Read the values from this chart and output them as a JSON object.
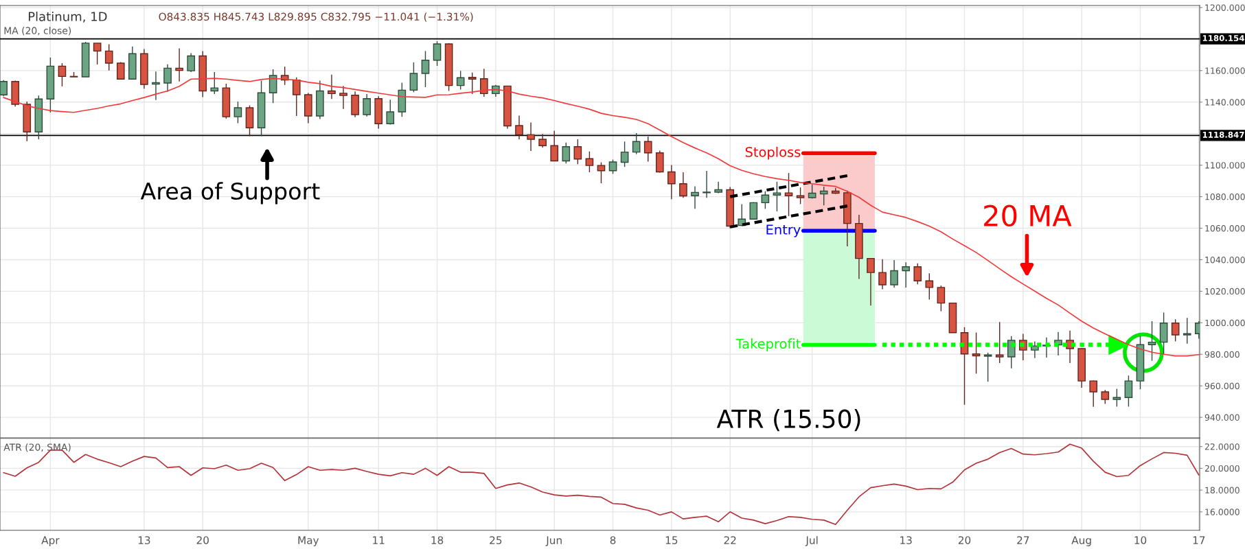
{
  "chart_data": [
    {
      "type": "candlestick",
      "title": "Platinum, 1D",
      "subtitle": "MA (20, close)",
      "categories": [
        null,
        null,
        null,
        null,
        null,
        null,
        null,
        null,
        null,
        null,
        null,
        null,
        null,
        null,
        null,
        null,
        null,
        null,
        null,
        null,
        null,
        null,
        null,
        null,
        null,
        null,
        null,
        null,
        null,
        null,
        null,
        null,
        null,
        null,
        null,
        null,
        null,
        null,
        null,
        null,
        null,
        null,
        null,
        null,
        null,
        null,
        null,
        null,
        null,
        null,
        null,
        null,
        null,
        null,
        null,
        null,
        null,
        null,
        null,
        null,
        null,
        null,
        null,
        null,
        null,
        null,
        null,
        null,
        null,
        null,
        null,
        null,
        null,
        null,
        null,
        null,
        null,
        null,
        null,
        null,
        null,
        null,
        null,
        null,
        null,
        null,
        null,
        null,
        null,
        null,
        null,
        null,
        null,
        null,
        null,
        null,
        null,
        null,
        null,
        null,
        null,
        null,
        null
      ],
      "ohlc": [
        [
          1144.6,
          1154.0,
          1143.7,
          1153.1
        ],
        [
          1153.1,
          1153.6,
          1137.2,
          1138.6
        ],
        [
          1138.6,
          1140.3,
          1115.2,
          1121.1
        ],
        [
          1121.1,
          1144.2,
          1116.4,
          1142.0
        ],
        [
          1142.0,
          1168.3,
          1133.4,
          1162.8
        ],
        [
          1162.8,
          1164.7,
          1150.0,
          1156.3
        ],
        [
          1156.3,
          1159.1,
          1156.0,
          1156.0
        ],
        [
          1156.0,
          1178.2,
          1156.0,
          1177.4
        ],
        [
          1177.4,
          1177.4,
          1163.9,
          1172.4
        ],
        [
          1172.4,
          1176.7,
          1160.1,
          1164.7
        ],
        [
          1164.7,
          1165.4,
          1154.3,
          1154.6
        ],
        [
          1154.6,
          1175.3,
          1154.3,
          1170.7
        ],
        [
          1170.7,
          1173.6,
          1148.5,
          1151.2
        ],
        [
          1151.4,
          1159.4,
          1141.3,
          1152.3
        ],
        [
          1152.1,
          1164.0,
          1146.6,
          1161.5
        ],
        [
          1161.5,
          1174.1,
          1153.1,
          1160.1
        ],
        [
          1159.9,
          1171.0,
          1159.1,
          1169.3
        ],
        [
          1169.3,
          1172.4,
          1143.2,
          1147.1
        ],
        [
          1147.1,
          1159.1,
          1145.1,
          1149.0
        ],
        [
          1149.0,
          1151.7,
          1129.5,
          1130.7
        ],
        [
          1130.7,
          1140.3,
          1126.6,
          1136.4
        ],
        [
          1136.4,
          1137.9,
          1118.4,
          1123.7
        ],
        [
          1123.7,
          1153.6,
          1118.4,
          1145.9
        ],
        [
          1145.9,
          1160.8,
          1139.4,
          1156.9
        ],
        [
          1156.9,
          1162.5,
          1150.9,
          1154.0
        ],
        [
          1154.0,
          1155.7,
          1131.2,
          1144.7
        ],
        [
          1144.7,
          1145.8,
          1126.6,
          1131.2
        ],
        [
          1131.2,
          1153.6,
          1129.2,
          1147.1
        ],
        [
          1147.1,
          1157.4,
          1142.0,
          1145.4
        ],
        [
          1145.6,
          1150.2,
          1135.7,
          1144.2
        ],
        [
          1144.4,
          1146.8,
          1130.4,
          1132.1
        ],
        [
          1132.1,
          1145.1,
          1130.9,
          1142.2
        ],
        [
          1142.2,
          1143.7,
          1123.2,
          1126.3
        ],
        [
          1126.3,
          1141.5,
          1125.8,
          1133.8
        ],
        [
          1133.8,
          1152.3,
          1130.7,
          1147.6
        ],
        [
          1147.6,
          1165.2,
          1146.3,
          1158.2
        ],
        [
          1158.2,
          1172.4,
          1149.5,
          1166.6
        ],
        [
          1166.6,
          1178.6,
          1163.0,
          1176.9
        ],
        [
          1176.9,
          1177.4,
          1147.1,
          1150.5
        ],
        [
          1150.5,
          1159.8,
          1148.0,
          1155.5
        ],
        [
          1155.7,
          1158.7,
          1145.1,
          1154.6
        ],
        [
          1154.8,
          1161.1,
          1143.4,
          1145.4
        ],
        [
          1145.4,
          1150.9,
          1143.4,
          1150.2
        ],
        [
          1150.2,
          1150.2,
          1123.2,
          1124.9
        ],
        [
          1125.1,
          1131.4,
          1116.4,
          1119.3
        ],
        [
          1119.3,
          1127.1,
          1109.0,
          1116.4
        ],
        [
          1116.4,
          1119.8,
          1111.2,
          1112.4
        ],
        [
          1112.4,
          1121.8,
          1102.7,
          1102.7
        ],
        [
          1102.7,
          1114.3,
          1101.0,
          1111.7
        ],
        [
          1111.7,
          1116.4,
          1100.6,
          1103.9
        ],
        [
          1104.1,
          1108.7,
          1095.5,
          1099.8
        ],
        [
          1099.8,
          1101.8,
          1088.5,
          1096.5
        ],
        [
          1096.5,
          1103.5,
          1094.5,
          1102.0
        ],
        [
          1101.8,
          1115.0,
          1098.9,
          1108.3
        ],
        [
          1108.3,
          1120.3,
          1107.0,
          1115.0
        ],
        [
          1115.0,
          1118.1,
          1102.2,
          1107.8
        ],
        [
          1107.8,
          1109.2,
          1095.3,
          1095.7
        ],
        [
          1095.7,
          1100.1,
          1078.4,
          1088.2
        ],
        [
          1088.2,
          1095.5,
          1079.3,
          1080.5
        ],
        [
          1080.6,
          1086.6,
          1072.3,
          1082.7
        ],
        [
          1082.5,
          1096.4,
          1079.3,
          1082.9
        ],
        [
          1082.9,
          1089.5,
          1082.2,
          1084.4
        ],
        [
          1084.4,
          1086.1,
          1060.0,
          1061.3
        ],
        [
          1061.7,
          1075.3,
          1061.3,
          1065.8
        ],
        [
          1065.8,
          1076.5,
          1065.6,
          1076.2
        ],
        [
          1076.2,
          1083.5,
          1072.3,
          1081.0
        ],
        [
          1081.0,
          1089.5,
          1070.7,
          1082.4
        ],
        [
          1082.4,
          1095.0,
          1067.7,
          1080.6
        ],
        [
          1080.6,
          1085.9,
          1075.3,
          1079.4
        ],
        [
          1079.4,
          1087.8,
          1078.8,
          1082.2
        ],
        [
          1081.8,
          1086.4,
          1074.5,
          1083.5
        ],
        [
          1083.5,
          1085.6,
          1081.8,
          1082.2
        ],
        [
          1082.5,
          1083.9,
          1048.5,
          1063.0
        ],
        [
          1063.0,
          1068.5,
          1027.8,
          1040.8
        ],
        [
          1040.8,
          1040.8,
          1010.9,
          1031.9
        ],
        [
          1031.9,
          1040.3,
          1021.3,
          1024.1
        ],
        [
          1024.1,
          1039.8,
          1022.4,
          1033.0
        ],
        [
          1033.0,
          1038.3,
          1022.4,
          1035.5
        ],
        [
          1035.5,
          1037.7,
          1024.4,
          1026.6
        ],
        [
          1026.6,
          1031.4,
          1014.7,
          1022.4
        ],
        [
          1022.4,
          1023.6,
          1007.3,
          1012.5
        ],
        [
          1012.5,
          1012.5,
          993.7,
          993.7
        ],
        [
          993.7,
          997.2,
          948.0,
          980.2
        ],
        [
          980.2,
          993.8,
          967.7,
          979.0
        ],
        [
          978.8,
          981.0,
          962.6,
          979.6
        ],
        [
          979.6,
          1000.5,
          974.5,
          978.4
        ],
        [
          978.4,
          991.6,
          971.1,
          988.9
        ],
        [
          988.9,
          993.0,
          976.2,
          982.7
        ],
        [
          982.7,
          988.2,
          977.6,
          985.3
        ],
        [
          985.3,
          990.7,
          977.9,
          985.8
        ],
        [
          986.0,
          994.2,
          979.3,
          988.9
        ],
        [
          988.9,
          995.0,
          974.5,
          983.6
        ],
        [
          983.6,
          983.9,
          958.8,
          963.1
        ],
        [
          963.1,
          963.4,
          946.7,
          956.2
        ],
        [
          956.2,
          957.4,
          948.5,
          951.4
        ],
        [
          951.4,
          958.1,
          946.8,
          952.6
        ],
        [
          952.6,
          966.5,
          946.8,
          963.1
        ],
        [
          963.1,
          991.6,
          957.8,
          986.1
        ],
        [
          986.1,
          1001.0,
          975.9,
          987.7
        ],
        [
          987.7,
          1006.5,
          979.6,
          999.8
        ],
        [
          999.8,
          1002.2,
          988.2,
          992.3
        ],
        [
          992.3,
          1003.1,
          986.8,
          993.1
        ],
        [
          993.1,
          1001.0,
          989.9,
          999.8
        ]
      ],
      "colors": [
        "#6ba583",
        "#d75442",
        "#d75442",
        "#6ba583",
        "#6ba583",
        "#d75442",
        "#d75442",
        "#6ba583",
        "#d75442",
        "#d75442",
        "#d75442",
        "#6ba583",
        "#d75442",
        "#6ba583",
        "#6ba583",
        "#d75442",
        "#6ba583",
        "#d75442",
        "#6ba583",
        "#d75442",
        "#6ba583",
        "#d75442",
        "#6ba583",
        "#6ba583",
        "#d75442",
        "#d75442",
        "#d75442",
        "#6ba583",
        "#d75442",
        "#d75442",
        "#d75442",
        "#6ba583",
        "#d75442",
        "#6ba583",
        "#6ba583",
        "#6ba583",
        "#6ba583",
        "#6ba583",
        "#d75442",
        "#6ba583",
        "#d75442",
        "#d75442",
        "#6ba583",
        "#d75442",
        "#d75442",
        "#d75442",
        "#d75442",
        "#d75442",
        "#6ba583",
        "#d75442",
        "#d75442",
        "#d75442",
        "#6ba583",
        "#6ba583",
        "#6ba583",
        "#d75442",
        "#d75442",
        "#d75442",
        "#d75442",
        "#6ba583",
        "#6ba583",
        "#6ba583",
        "#d75442",
        "#6ba583",
        "#6ba583",
        "#6ba583",
        "#6ba583",
        "#d75442",
        "#d75442",
        "#6ba583",
        "#6ba583",
        "#d75442",
        "#d75442",
        "#d75442",
        "#d75442",
        "#d75442",
        "#6ba583",
        "#6ba583",
        "#d75442",
        "#d75442",
        "#d75442",
        "#d75442",
        "#d75442",
        "#d75442",
        "#6ba583",
        "#d75442",
        "#6ba583",
        "#d75442",
        "#6ba583",
        "#6ba583",
        "#6ba583",
        "#d75442",
        "#d75442",
        "#d75442",
        "#d75442",
        "#6ba583",
        "#6ba583",
        "#6ba583",
        "#6ba583",
        "#6ba583",
        "#d75442",
        "#6ba583",
        "#6ba583"
      ],
      "series": [
        {
          "type": "line",
          "color": "#f23a3a",
          "values": [
            1142.9,
            1140.3,
            1137.7,
            1136.0,
            1134.6,
            1134.0,
            1133.5,
            1134.8,
            1136.0,
            1137.6,
            1138.9,
            1141.0,
            1142.9,
            1145.1,
            1147.1,
            1150.0,
            1154.6,
            1154.8,
            1155.1,
            1154.6,
            1153.8,
            1153.1,
            1154.3,
            1155.1,
            1154.5,
            1154.0,
            1152.6,
            1151.7,
            1150.0,
            1149.2,
            1148.0,
            1146.8,
            1145.7,
            1144.6,
            1143.5,
            1143.2,
            1143.0,
            1144.6,
            1144.7,
            1145.6,
            1146.4,
            1147.5,
            1148.0,
            1147.1,
            1145.1,
            1143.7,
            1142.7,
            1141.0,
            1139.1,
            1137.4,
            1135.5,
            1132.9,
            1131.4,
            1130.4,
            1129.0,
            1126.3,
            1122.3,
            1118.1,
            1114.3,
            1110.9,
            1107.8,
            1104.1,
            1099.6,
            1096.7,
            1094.5,
            1092.8,
            1091.4,
            1090.4,
            1089.0,
            1088.2,
            1087.3,
            1086.5,
            1083.4,
            1079.6,
            1074.5,
            1070.2,
            1068.5,
            1066.8,
            1064.2,
            1061.3,
            1057.7,
            1053.1,
            1048.9,
            1044.6,
            1039.5,
            1034.3,
            1029.2,
            1024.6,
            1020.1,
            1015.5,
            1011.3,
            1006.1,
            1001.0,
            996.7,
            993.0,
            989.5,
            986.1,
            983.4,
            981.3,
            980.0,
            979.0,
            979.0,
            979.8
          ]
        },
        {
          "type": "line",
          "color": "#000000",
          "line_style": "dashed",
          "values": [
            null,
            null,
            null,
            null,
            null,
            null,
            null,
            null,
            null,
            null,
            null,
            null,
            null,
            null,
            null,
            null,
            null,
            null,
            null,
            null,
            null,
            null,
            null,
            null,
            null,
            null,
            null,
            null,
            null,
            null,
            null,
            null,
            null,
            null,
            null,
            null,
            null,
            null,
            null,
            null,
            null,
            null,
            null,
            null,
            null,
            null,
            null,
            null,
            null,
            null,
            null,
            null,
            null,
            null,
            null,
            null,
            null,
            null,
            null,
            null,
            null,
            null,
            1080.0,
            null,
            null,
            null,
            null,
            null,
            null,
            null,
            null,
            null,
            1093.3,
            null,
            null,
            null,
            null,
            null,
            null,
            null,
            null,
            null,
            null,
            null,
            null,
            null,
            null,
            null,
            null,
            null,
            null,
            null,
            null,
            null,
            null,
            null,
            null,
            null,
            null,
            null,
            null,
            null,
            null
          ]
        },
        {
          "type": "line",
          "color": "#000000",
          "line_style": "dashed",
          "values": [
            null,
            null,
            null,
            null,
            null,
            null,
            null,
            null,
            null,
            null,
            null,
            null,
            null,
            null,
            null,
            null,
            null,
            null,
            null,
            null,
            null,
            null,
            null,
            null,
            null,
            null,
            null,
            null,
            null,
            null,
            null,
            null,
            null,
            null,
            null,
            null,
            null,
            null,
            null,
            null,
            null,
            null,
            null,
            null,
            null,
            null,
            null,
            null,
            null,
            null,
            null,
            null,
            null,
            null,
            null,
            null,
            null,
            null,
            null,
            null,
            null,
            null,
            1060.8,
            null,
            null,
            null,
            null,
            null,
            null,
            null,
            null,
            null,
            1074.1,
            null,
            null,
            null,
            null,
            null,
            null,
            null,
            null,
            null,
            null,
            null,
            null,
            null,
            null,
            null,
            null,
            null,
            null,
            null,
            null,
            null,
            null,
            null,
            null,
            null,
            null,
            null,
            null,
            null,
            null
          ]
        },
        {
          "type": "line",
          "color": "#00ff00",
          "line_style": "dotted",
          "values": [
            null,
            null,
            null,
            null,
            null,
            null,
            null,
            null,
            null,
            null,
            null,
            null,
            null,
            null,
            null,
            null,
            null,
            null,
            null,
            null,
            null,
            null,
            null,
            null,
            null,
            null,
            null,
            null,
            null,
            null,
            null,
            null,
            null,
            null,
            null,
            null,
            null,
            null,
            null,
            null,
            null,
            null,
            null,
            null,
            null,
            null,
            null,
            null,
            null,
            null,
            null,
            null,
            null,
            null,
            null,
            null,
            null,
            null,
            null,
            null,
            null,
            null,
            null,
            null,
            null,
            null,
            null,
            null,
            null,
            null,
            null,
            null,
            null,
            null,
            null,
            986.0,
            null,
            null,
            null,
            null,
            null,
            null,
            null,
            null,
            null,
            null,
            null,
            null,
            null,
            null,
            null,
            null,
            null,
            null,
            null,
            986.0,
            null,
            null,
            null,
            null,
            null,
            null,
            null
          ]
        }
      ],
      "ylim": [
        927,
        1201.3
      ],
      "yticks": [
        {
          "value": 940,
          "label": "940.000"
        },
        {
          "value": 960,
          "label": "960.000"
        },
        {
          "value": 980,
          "label": "980.000"
        },
        {
          "value": 1000,
          "label": "1000.000"
        },
        {
          "value": 1020,
          "label": "1020.000"
        },
        {
          "value": 1040,
          "label": "1040.000"
        },
        {
          "value": 1060,
          "label": "1060.000"
        },
        {
          "value": 1080,
          "label": "1080.000"
        },
        {
          "value": 1100,
          "label": "1100.000"
        },
        {
          "value": 1120,
          "label": null
        },
        {
          "value": 1140,
          "label": "1140.000"
        },
        {
          "value": 1160,
          "label": "1160.000"
        },
        {
          "value": 1180,
          "label": null
        },
        {
          "value": 1200,
          "label": "1200.000"
        }
      ],
      "ref_lines": [
        {
          "axis": "y",
          "value": 1180.154,
          "label": "1180.154",
          "color": "#000000"
        },
        {
          "axis": "y",
          "value": 1118.847,
          "label": "1118.847",
          "color": "#000000"
        },
        {
          "axis": "y",
          "value": 1107.6,
          "label": "Stoploss",
          "color": "#ff0000"
        },
        {
          "axis": "y",
          "value": 1058.4,
          "label": "Entry",
          "color": "#0000ff"
        },
        {
          "axis": "y",
          "value": 986.0,
          "label": "Takeprofit",
          "color": "#00ff00"
        }
      ],
      "bands": [
        {
          "axis": "y",
          "from": 1058.4,
          "to": 1107.6,
          "color": "#fbcaca"
        },
        {
          "axis": "y",
          "from": 986.0,
          "to": 1058.4,
          "color": "#cbfbd6"
        }
      ],
      "annotations": [
        "O843.835 H845.743 L829.895 C832.795 −11.041 (−1.31%)",
        "Area of Support",
        "20 MA",
        "ATR (15.50)"
      ],
      "grid": true,
      "tick_labels": "y"
    },
    {
      "type": "line",
      "title": "ATR (20, SMA)",
      "categories": [
        null,
        null,
        null,
        null,
        "Apr",
        null,
        null,
        null,
        null,
        null,
        null,
        null,
        "13",
        null,
        null,
        null,
        null,
        "20",
        null,
        null,
        null,
        null,
        null,
        null,
        null,
        null,
        "May",
        null,
        null,
        null,
        null,
        null,
        "11",
        null,
        null,
        null,
        null,
        "18",
        null,
        null,
        null,
        null,
        "25",
        null,
        null,
        null,
        null,
        "Jun",
        null,
        null,
        null,
        null,
        "8",
        null,
        null,
        null,
        null,
        "15",
        null,
        null,
        null,
        null,
        "22",
        null,
        null,
        null,
        null,
        null,
        null,
        "Jul",
        null,
        null,
        null,
        null,
        null,
        null,
        null,
        "13",
        null,
        null,
        null,
        null,
        "20",
        null,
        null,
        null,
        null,
        "27",
        null,
        null,
        null,
        null,
        "Aug",
        null,
        null,
        null,
        null,
        "10",
        null,
        null,
        null,
        null,
        "17"
      ],
      "color": "#b2343a",
      "values": [
        19.6,
        19.27,
        20.04,
        20.55,
        21.67,
        21.67,
        20.55,
        21.27,
        20.84,
        20.51,
        20.15,
        20.65,
        21.09,
        20.95,
        20.07,
        20.15,
        19.35,
        20.04,
        19.96,
        20.29,
        19.82,
        19.96,
        20.47,
        20.07,
        18.87,
        19.42,
        20.15,
        19.82,
        19.89,
        19.82,
        20.0,
        19.71,
        19.45,
        19.31,
        19.6,
        19.45,
        20.0,
        19.35,
        20.15,
        19.64,
        19.64,
        19.53,
        18.15,
        18.47,
        18.65,
        18.29,
        17.82,
        17.56,
        17.45,
        17.53,
        17.42,
        17.35,
        16.76,
        16.69,
        16.36,
        16.15,
        15.71,
        16.0,
        15.35,
        15.49,
        15.6,
        15.09,
        16.0,
        15.42,
        15.24,
        14.91,
        15.2,
        15.56,
        15.49,
        15.31,
        15.24,
        14.84,
        16.15,
        17.38,
        18.22,
        18.4,
        18.55,
        18.36,
        18.04,
        18.15,
        18.11,
        18.73,
        19.85,
        20.47,
        20.84,
        21.45,
        21.82,
        21.31,
        21.24,
        21.35,
        21.49,
        22.22,
        21.85,
        20.65,
        19.64,
        19.24,
        19.35,
        20.25,
        20.87,
        21.45,
        21.38,
        21.2,
        19.38
      ],
      "ylim": [
        14.3,
        22.75
      ],
      "yticks": [
        {
          "value": 16,
          "label": "16.0000"
        },
        {
          "value": 18,
          "label": "18.0000"
        },
        {
          "value": 20,
          "label": "20.0000"
        },
        {
          "value": 22,
          "label": "22.0000"
        }
      ],
      "grid": true
    }
  ]
}
